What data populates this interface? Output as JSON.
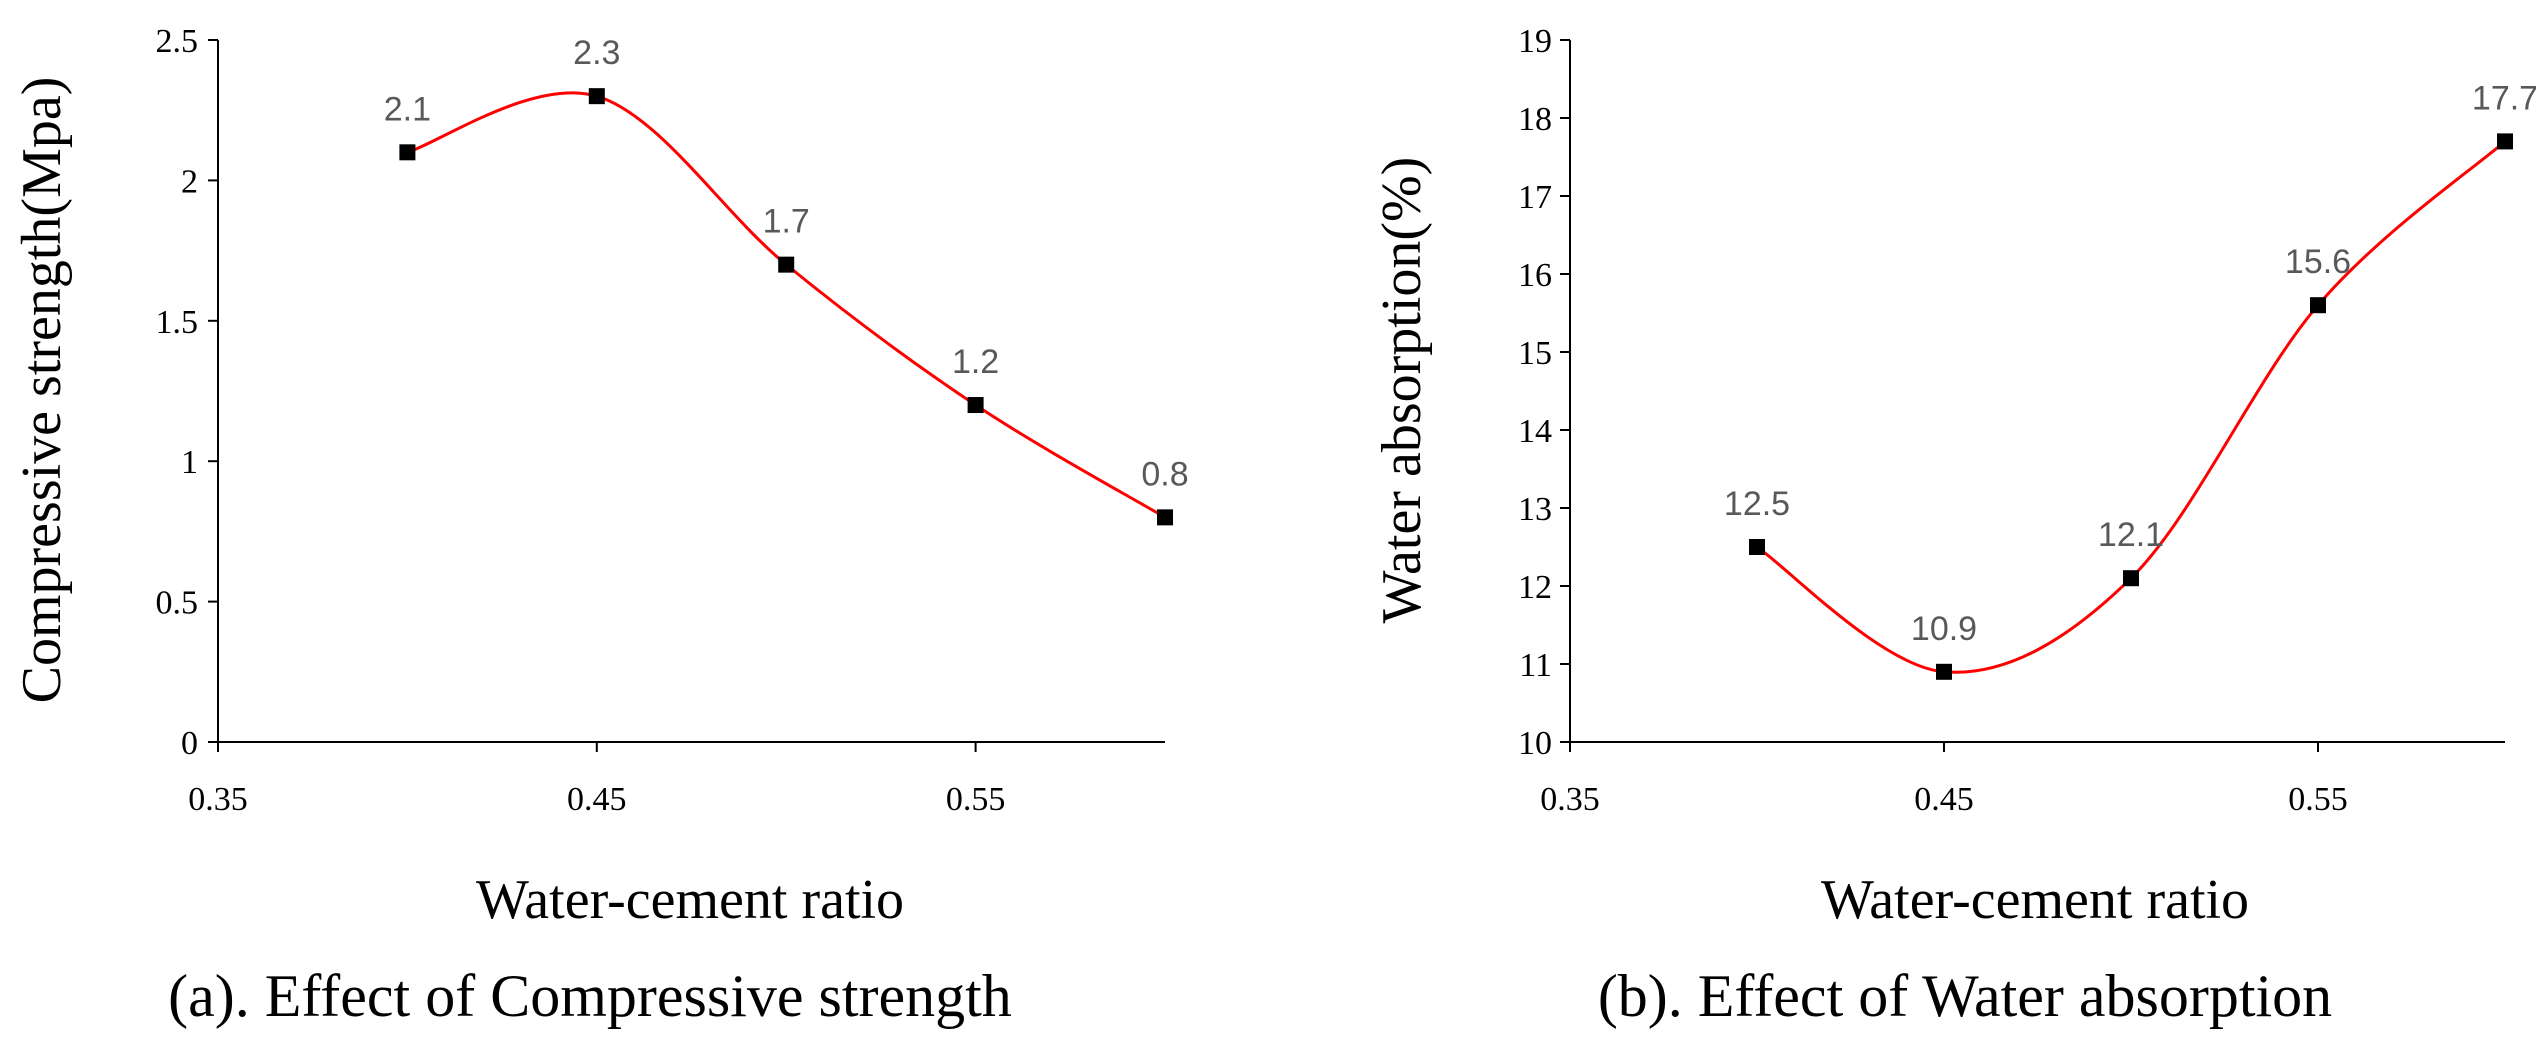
{
  "chart_data": [
    {
      "type": "line",
      "title": "",
      "caption": "(a). Effect of Compressive strength",
      "xlabel": "Water-cement ratio",
      "ylabel": "Compressive strength(Mpa)",
      "xlim": [
        0.35,
        0.6
      ],
      "ylim": [
        0,
        2.5
      ],
      "xticks": [
        "0.35",
        "0.45",
        "0.55"
      ],
      "xtick_values": [
        0.35,
        0.45,
        0.55
      ],
      "yticks": [
        "0",
        "0.5",
        "1",
        "1.5",
        "2",
        "2.5"
      ],
      "ytick_values": [
        0,
        0.5,
        1,
        1.5,
        2,
        2.5
      ],
      "x": [
        0.4,
        0.45,
        0.5,
        0.55,
        0.6
      ],
      "values": [
        2.1,
        2.3,
        1.7,
        1.2,
        0.8
      ],
      "labels": [
        "2.1",
        "2.3",
        "1.7",
        "1.2",
        "0.8"
      ],
      "line_color": "#ff0000",
      "marker_color": "#000000",
      "smooth": true
    },
    {
      "type": "line",
      "title": "",
      "caption": "(b). Effect of Water absorption",
      "xlabel": "Water-cement ratio",
      "ylabel": "Water absorption(%)",
      "xlim": [
        0.35,
        0.6
      ],
      "ylim": [
        10,
        19
      ],
      "xticks": [
        "0.35",
        "0.45",
        "0.55"
      ],
      "xtick_values": [
        0.35,
        0.45,
        0.55
      ],
      "yticks": [
        "10",
        "11",
        "12",
        "13",
        "14",
        "15",
        "16",
        "17",
        "18",
        "19"
      ],
      "ytick_values": [
        10,
        11,
        12,
        13,
        14,
        15,
        16,
        17,
        18,
        19
      ],
      "x": [
        0.4,
        0.45,
        0.5,
        0.55,
        0.6
      ],
      "values": [
        12.5,
        10.9,
        12.1,
        15.6,
        17.7
      ],
      "labels": [
        "12.5",
        "10.9",
        "12.1",
        "15.6",
        "17.7"
      ],
      "line_color": "#ff0000",
      "marker_color": "#000000",
      "smooth": true
    }
  ]
}
